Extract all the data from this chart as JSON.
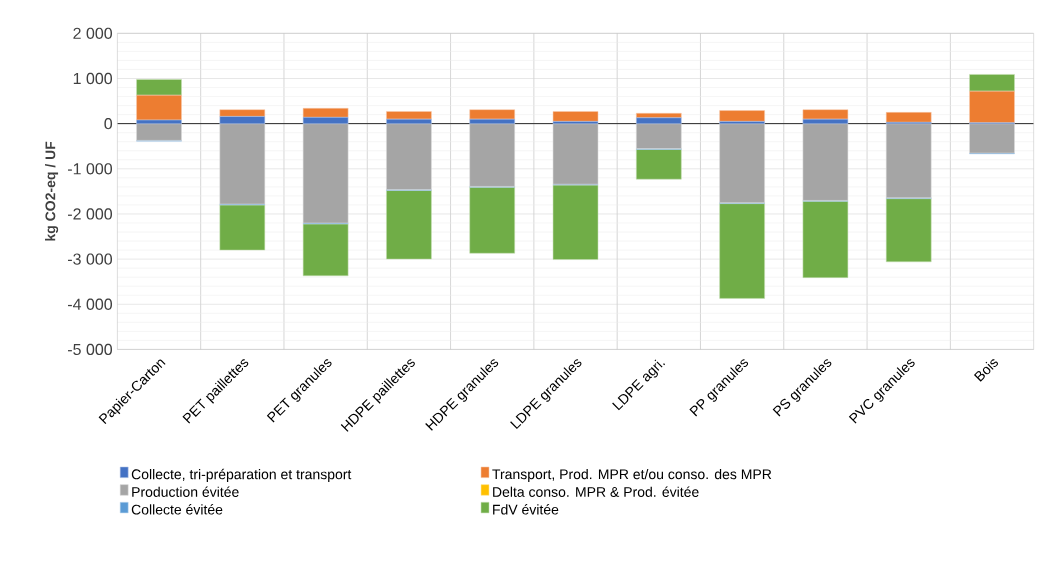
{
  "chart_data": {
    "type": "bar",
    "stacked": true,
    "ylabel": "kg CO2-eq / UF",
    "categories": [
      "Papier-Carton",
      "PET paillettes",
      "PET granules",
      "HDPE paillettes",
      "HDPE granules",
      "LDPE granules",
      "LDPE agri.",
      "PP granules",
      "PS granules",
      "PVC granules",
      "Bois"
    ],
    "series": [
      {
        "name": "Collecte, tri-préparation et transport",
        "color": "#4472c4",
        "values": [
          80,
          160,
          140,
          100,
          100,
          50,
          130,
          50,
          100,
          30,
          20
        ]
      },
      {
        "name": "Transport, Prod. MPR et/ou conso. des MPR",
        "color": "#ed7d31",
        "values": [
          550,
          150,
          200,
          170,
          210,
          220,
          100,
          240,
          210,
          220,
          700
        ]
      },
      {
        "name": "Production évitée",
        "color": "#a5a5a5",
        "values": [
          -370,
          -1780,
          -2200,
          -1460,
          -1390,
          -1340,
          -550,
          -1750,
          -1700,
          -1640,
          -650
        ]
      },
      {
        "name": "Delta conso. MPR & Prod. évitée",
        "color": "#ffc000",
        "values": [
          0,
          0,
          0,
          0,
          0,
          0,
          0,
          0,
          0,
          0,
          0
        ]
      },
      {
        "name": "Collecte évitée",
        "color": "#5b9bd5",
        "values": [
          -20,
          -20,
          -20,
          -20,
          -20,
          -20,
          -20,
          -20,
          -20,
          -20,
          -20
        ]
      },
      {
        "name": "FdV évitée",
        "color": "#70ad47",
        "values": [
          350,
          -1000,
          -1150,
          -1520,
          -1460,
          -1650,
          -660,
          -2100,
          -1690,
          -1400,
          370
        ]
      }
    ],
    "ylim": [
      -5000,
      2000
    ],
    "yticks": [
      {
        "value": -5000,
        "label": "-5 000"
      },
      {
        "value": -4000,
        "label": "-4 000"
      },
      {
        "value": -3000,
        "label": "-3 000"
      },
      {
        "value": -2000,
        "label": "-2 000"
      },
      {
        "value": -1000,
        "label": "-1 000"
      },
      0,
      {
        "value": 1000,
        "label": "1 000"
      },
      {
        "value": 2000,
        "label": "2 000"
      }
    ],
    "grid": true,
    "legend": "bottom"
  }
}
